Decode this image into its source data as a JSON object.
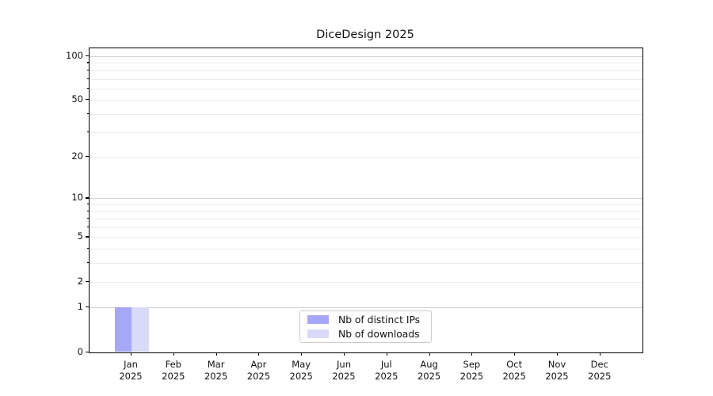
{
  "chart_data": {
    "type": "bar",
    "title": "DiceDesign 2025",
    "categories": [
      "Jan 2025",
      "Feb 2025",
      "Mar 2025",
      "Apr 2025",
      "May 2025",
      "Jun 2025",
      "Jul 2025",
      "Aug 2025",
      "Sep 2025",
      "Oct 2025",
      "Nov 2025",
      "Dec 2025"
    ],
    "series": [
      {
        "name": "Nb of distinct IPs",
        "color": "#a7a7f7",
        "values": [
          1,
          0,
          0,
          0,
          0,
          0,
          0,
          0,
          0,
          0,
          0,
          0
        ]
      },
      {
        "name": "Nb of downloads",
        "color": "#d9d9f8",
        "values": [
          1,
          0,
          0,
          0,
          0,
          0,
          0,
          0,
          0,
          0,
          0,
          0
        ]
      }
    ],
    "xlabel": "",
    "ylabel": "",
    "ylim": [
      0,
      100
    ],
    "yscale": "log1p",
    "yticks": [
      0,
      1,
      2,
      5,
      10,
      20,
      50,
      100
    ],
    "yticks_minor": [
      2,
      3,
      4,
      5,
      6,
      7,
      8,
      9,
      20,
      30,
      40,
      50,
      60,
      70,
      80,
      90
    ],
    "grid": "horizontal major+minor",
    "legend_position": "lower center"
  },
  "colors": {
    "background": "#ffffff",
    "spine": "#000000",
    "grid_major": "#d0d0d0",
    "grid_minor": "#ebebeb",
    "text": "#111111",
    "legend_border": "#cccccc",
    "bar_distinct_ips": "#a7a7f7",
    "bar_downloads": "#d9d9f8"
  }
}
